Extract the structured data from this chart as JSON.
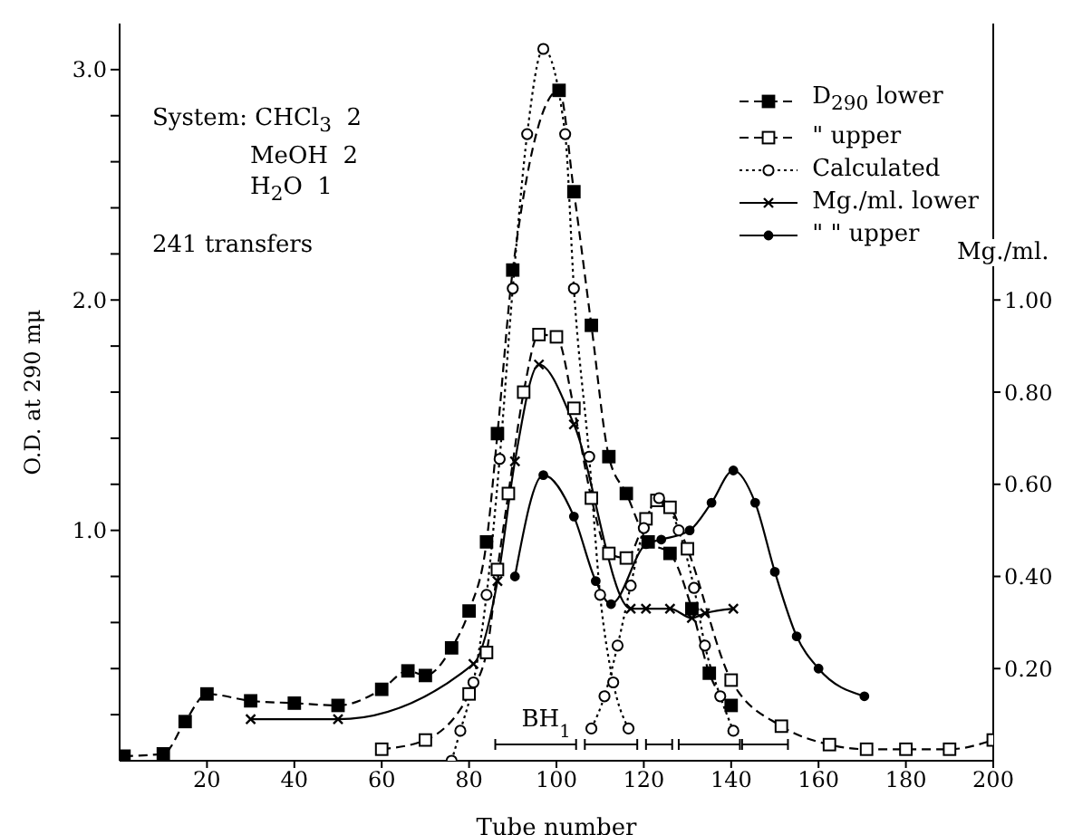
{
  "chart_data": {
    "type": "line",
    "xlabel": "Tube number",
    "ylabel": "O.D. at 290 mμ",
    "y2label": "Mg./ml.",
    "annotations": [
      "System: CHCl$_{3}$  2",
      "MeOH  2",
      "H$_{2}$O  1",
      "241 transfers",
      "BH$_{1}$"
    ],
    "xlim": [
      0,
      200
    ],
    "xticks": [
      20,
      40,
      60,
      80,
      100,
      120,
      140,
      160,
      180,
      200
    ],
    "ylim": [
      0,
      3.2
    ],
    "yticks": [
      {
        "value": 0.2,
        "label": null
      },
      {
        "value": 0.4,
        "label": null
      },
      {
        "value": 0.6,
        "label": null
      },
      {
        "value": 0.8,
        "label": null
      },
      {
        "value": 1,
        "label": "1.0"
      },
      {
        "value": 1.2,
        "label": null
      },
      {
        "value": 1.4,
        "label": null
      },
      {
        "value": 1.6,
        "label": null
      },
      {
        "value": 1.8,
        "label": null
      },
      {
        "value": 2,
        "label": "2.0"
      },
      {
        "value": 2.2,
        "label": null
      },
      {
        "value": 2.4,
        "label": null
      },
      {
        "value": 2.6,
        "label": null
      },
      {
        "value": 2.8,
        "label": null
      },
      {
        "value": 3,
        "label": "3.0"
      }
    ],
    "y2lim": [
      0,
      1.6
    ],
    "y2ticks": [
      {
        "value": 0.2,
        "label": "0.20"
      },
      {
        "value": 0.4,
        "label": "0.40"
      },
      {
        "value": 0.6,
        "label": "0.60"
      },
      {
        "value": 0.8,
        "label": "0.80"
      },
      {
        "value": 1,
        "label": "1.00"
      }
    ],
    "legend": "top right",
    "series": [
      {
        "name": "D$_{290}$ lower",
        "color": "#000000",
        "marker": "square",
        "line_style": "dashed",
        "x": [
          1,
          10,
          15,
          20,
          30,
          40,
          50,
          60,
          66,
          70,
          76,
          80,
          84,
          86.5,
          90,
          100.6,
          104,
          108,
          112,
          116,
          121,
          126,
          131,
          135,
          140
        ],
        "values": [
          0.02,
          0.03,
          0.17,
          0.29,
          0.26,
          0.25,
          0.24,
          0.31,
          0.39,
          0.37,
          0.49,
          0.65,
          0.95,
          1.42,
          2.13,
          2.91,
          2.47,
          1.89,
          1.32,
          1.16,
          0.95,
          0.9,
          0.66,
          0.38,
          0.24
        ]
      },
      {
        "name": "\" upper",
        "color": "#000000",
        "marker": "square-open",
        "line_style": "dashed",
        "x": [
          60,
          70,
          80,
          84,
          86.5,
          89,
          92.5,
          96,
          100,
          104,
          108,
          112,
          116,
          120.5,
          123,
          126,
          130,
          140,
          151.5,
          162.5,
          171,
          180,
          190,
          200
        ],
        "values": [
          0.05,
          0.09,
          0.29,
          0.47,
          0.83,
          1.16,
          1.6,
          1.85,
          1.84,
          1.53,
          1.14,
          0.9,
          0.88,
          1.05,
          1.13,
          1.1,
          0.92,
          0.35,
          0.15,
          0.07,
          0.05,
          0.05,
          0.05,
          0.09
        ]
      },
      {
        "name": "Calculated",
        "color": "#000000",
        "marker": "circle-open",
        "line_style": "dotted",
        "x": [
          76,
          78,
          81,
          84,
          87,
          90,
          93.3,
          97,
          102,
          104,
          107.5,
          110,
          113,
          116.5
        ],
        "values": [
          0,
          0.13,
          0.34,
          0.72,
          1.31,
          2.05,
          2.72,
          3.09,
          2.72,
          2.05,
          1.32,
          0.72,
          0.34,
          0.14
        ]
      },
      {
        "color": "#000000",
        "marker": "circle-open",
        "line_style": "dotted",
        "x": [
          108,
          111,
          114,
          117,
          120,
          123.5,
          128,
          131.5,
          134,
          137.5,
          140.5
        ],
        "values": [
          0.14,
          0.28,
          0.5,
          0.76,
          1.01,
          1.14,
          1,
          0.75,
          0.5,
          0.28,
          0.13
        ]
      },
      {
        "name": "Mg./ml. lower",
        "color": "#000000",
        "marker": "cross",
        "line_style": "solid",
        "axis": "y2",
        "x": [
          30,
          50,
          81,
          86.5,
          90.5,
          96,
          104,
          117,
          120.5,
          126,
          131,
          134,
          140.5
        ],
        "values": [
          0.09,
          0.09,
          0.21,
          0.39,
          0.65,
          0.86,
          0.73,
          0.33,
          0.33,
          0.33,
          0.31,
          0.32,
          0.33
        ]
      },
      {
        "name": "\" \" upper",
        "color": "#000000",
        "marker": "circle",
        "line_style": "solid",
        "axis": "y2",
        "x": [
          90.5,
          97,
          104,
          109,
          112.5,
          120.5,
          124,
          130.5,
          135.5,
          140.5,
          145.5,
          150,
          155,
          160,
          170.5
        ],
        "values": [
          0.4,
          0.62,
          0.53,
          0.39,
          0.34,
          0.47,
          0.48,
          0.5,
          0.56,
          0.63,
          0.56,
          0.41,
          0.27,
          0.2,
          0.14
        ]
      }
    ]
  }
}
